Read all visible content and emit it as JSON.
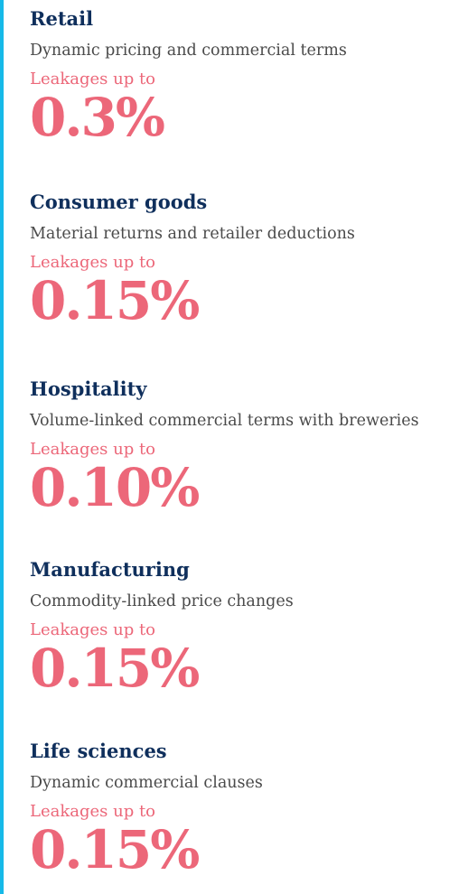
{
  "colors": {
    "accent_bar": "#16b9e8",
    "title": "#0f2f5c",
    "description": "#4a4a4a",
    "highlight": "#ec6779"
  },
  "sectors": [
    {
      "title": "Retail",
      "description": "Dynamic pricing and commercial terms",
      "leak_label": "Leakages up to",
      "value": "0.3%"
    },
    {
      "title": "Consumer goods",
      "description": "Material returns and retailer deductions",
      "leak_label": "Leakages up to",
      "value": "0.15%"
    },
    {
      "title": "Hospitality",
      "description": "Volume-linked commercial terms with breweries",
      "leak_label": "Leakages up to",
      "value": "0.10%"
    },
    {
      "title": "Manufacturing",
      "description": "Commodity-linked price changes",
      "leak_label": "Leakages up to",
      "value": "0.15%"
    },
    {
      "title": "Life sciences",
      "description": "Dynamic commercial clauses",
      "leak_label": "Leakages up to",
      "value": "0.15%"
    }
  ]
}
